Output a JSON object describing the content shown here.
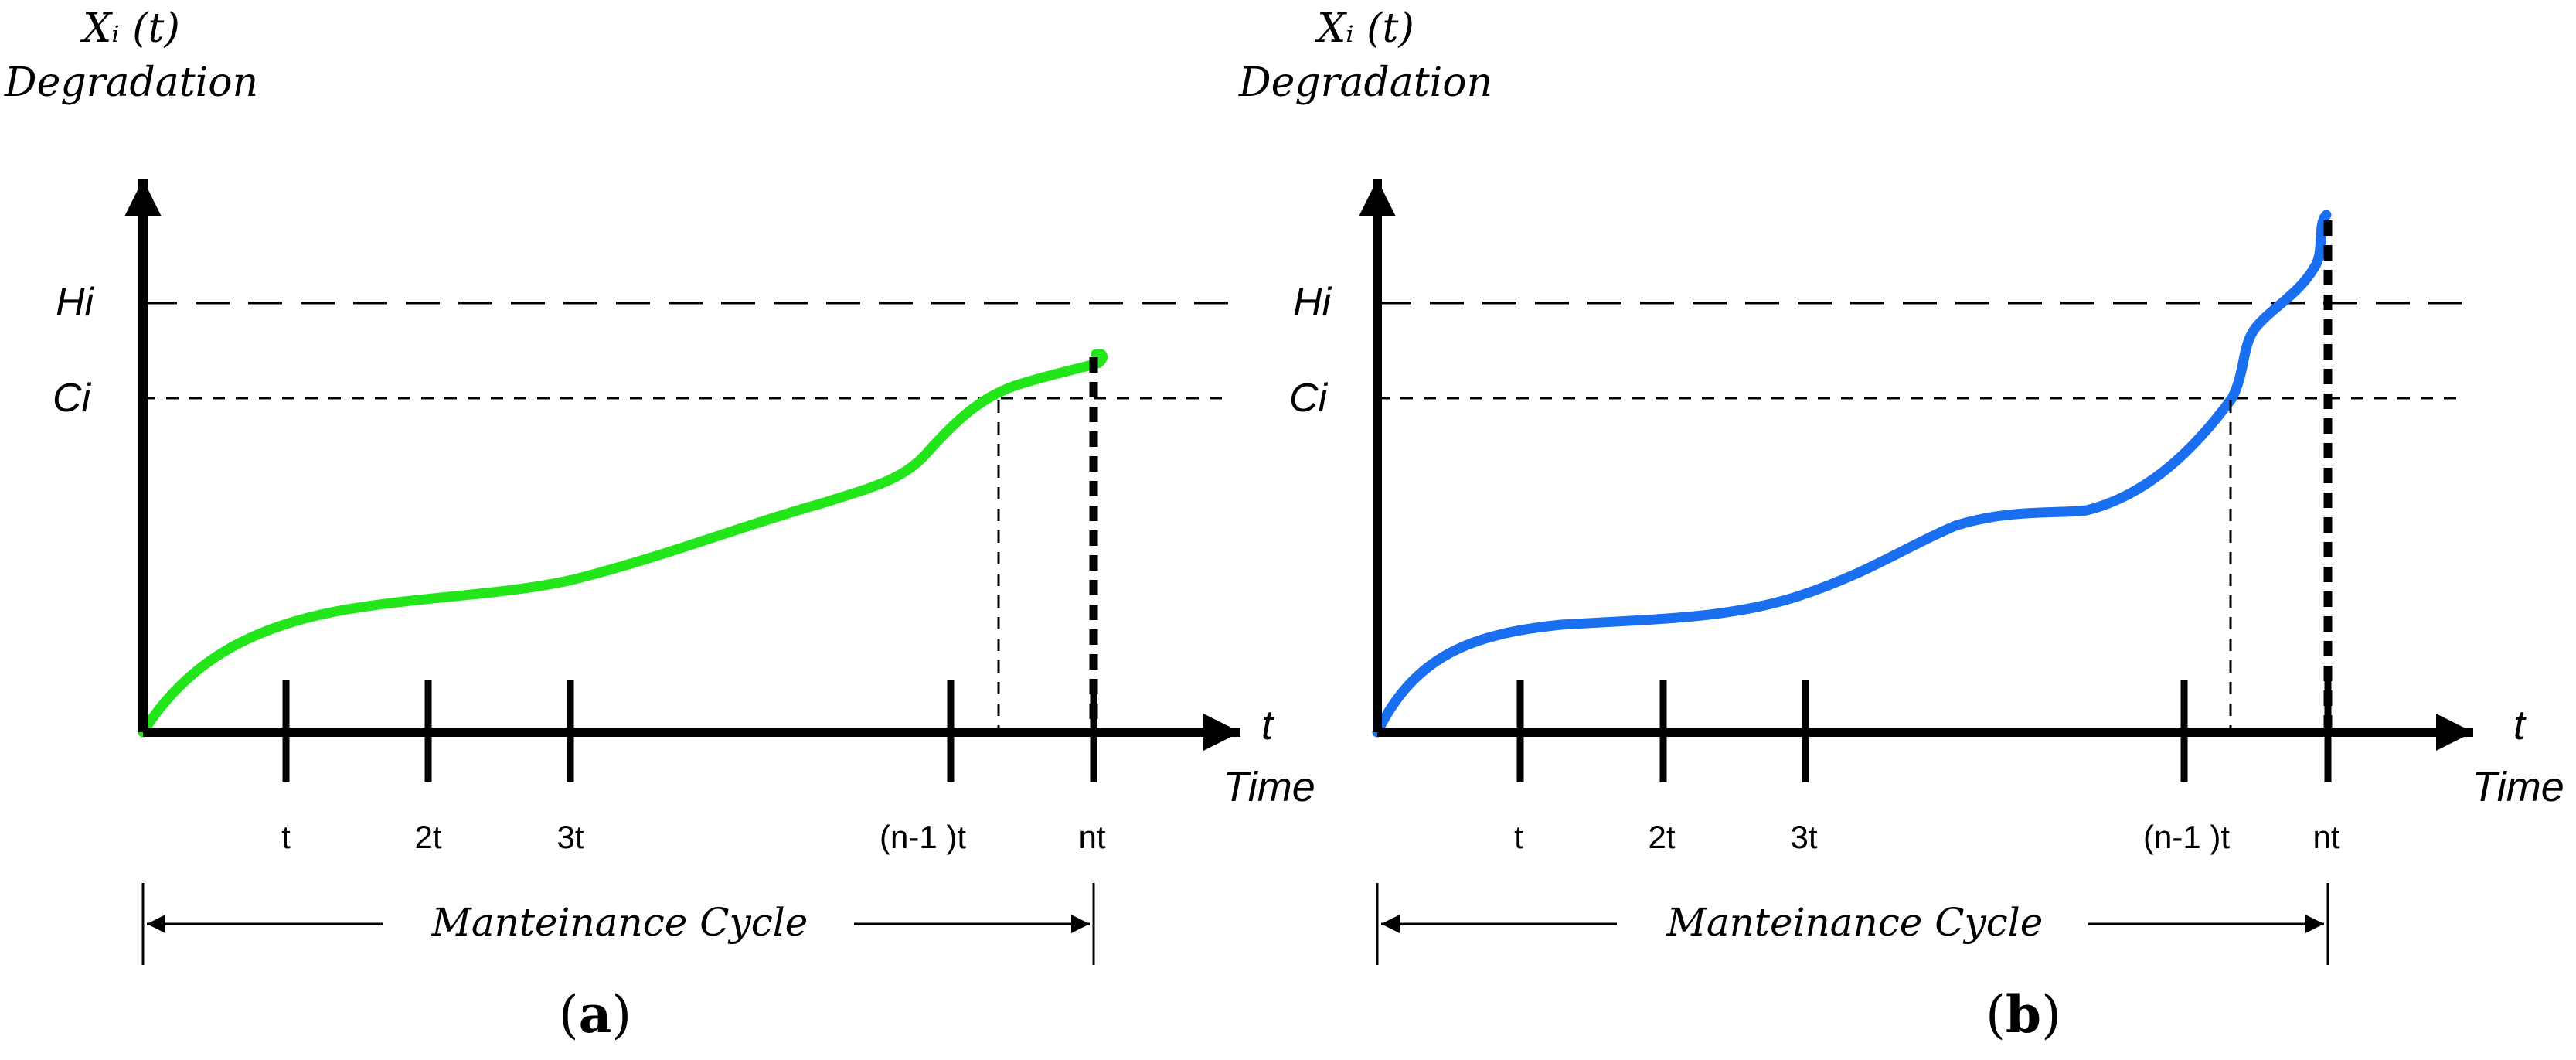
{
  "panels": [
    {
      "id": "a",
      "y_title_line1": "Xᵢ (t)",
      "y_title_line2": "Degradation",
      "threshold_hi": "Hi",
      "threshold_ci": "Ci",
      "x_symbol": "t",
      "x_title": "Time",
      "ticks": [
        "t",
        "2t",
        "3t",
        "(n-1 )t",
        "nt"
      ],
      "cycle_label": "Manteinance Cycle",
      "caption_open": "(",
      "caption_letter": "a",
      "caption_close": ")",
      "curve_color": "#22e61a"
    },
    {
      "id": "b",
      "y_title_line1": "Xᵢ (t)",
      "y_title_line2": "Degradation",
      "threshold_hi": "Hi",
      "threshold_ci": "Ci",
      "x_symbol": "t",
      "x_title": "Time",
      "ticks": [
        "t",
        "2t",
        "3t",
        "(n-1 )t",
        "nt"
      ],
      "cycle_label": "Manteinance Cycle",
      "caption_open": "(",
      "caption_letter": "b",
      "caption_close": ")",
      "curve_color": "#1a6ef0"
    }
  ]
}
